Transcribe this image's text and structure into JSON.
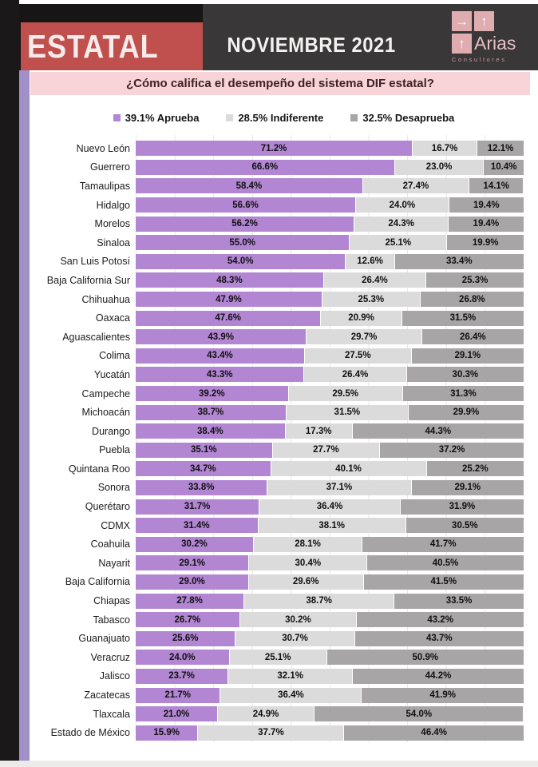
{
  "header": {
    "banner": "ESTATAL",
    "period": "NOVIEMBRE 2021",
    "banner_color": "#c0504d",
    "logo": {
      "name": "Arias",
      "subtitle": "Consultores",
      "arrows": [
        {
          "name": "arrow-right-icon",
          "glyph": "→"
        },
        {
          "name": "arrow-up-icon",
          "glyph": "↑"
        },
        {
          "name": "arrow-up-icon",
          "glyph": "↑"
        }
      ]
    }
  },
  "title": "¿Cómo califica el desempeño del sistema DIF estatal?",
  "title_band_color": "#f8d3d7",
  "accent_stripe_color": "#a291c8",
  "legend": [
    {
      "label": "39.1% Aprueba",
      "color": "#b286d3",
      "icon": "aprueba-swatch-icon"
    },
    {
      "label": "28.5% Indiferente",
      "color": "#dcdbdc",
      "icon": "indiferente-swatch-icon"
    },
    {
      "label": "32.5% Desaprueba",
      "color": "#a7a5a6",
      "icon": "desaprueba-swatch-icon"
    }
  ],
  "chart_data": {
    "type": "bar",
    "orientation": "horizontal",
    "stacked": true,
    "title": "¿Cómo califica el desempeño del sistema DIF estatal?",
    "xlabel": "",
    "ylabel": "",
    "xlim": [
      0,
      100
    ],
    "grid": true,
    "legend_position": "top",
    "categories": [
      "Nuevo León",
      "Guerrero",
      "Tamaulipas",
      "Hidalgo",
      "Morelos",
      "Sinaloa",
      "San Luis Potosí",
      "Baja California Sur",
      "Chihuahua",
      "Oaxaca",
      "Aguascalientes",
      "Colima",
      "Yucatán",
      "Campeche",
      "Michoacán",
      "Durango",
      "Puebla",
      "Quintana Roo",
      "Sonora",
      "Querétaro",
      "CDMX",
      "Coahuila",
      "Nayarit",
      "Baja California",
      "Chiapas",
      "Tabasco",
      "Guanajuato",
      "Veracruz",
      "Jalisco",
      "Zacatecas",
      "Tlaxcala",
      "Estado de México"
    ],
    "series": [
      {
        "name": "Aprueba",
        "color": "#b286d3",
        "values": [
          71.2,
          66.6,
          58.4,
          56.6,
          56.2,
          55.0,
          54.0,
          48.3,
          47.9,
          47.6,
          43.9,
          43.4,
          43.3,
          39.2,
          38.7,
          38.4,
          35.1,
          34.7,
          33.8,
          31.7,
          31.4,
          30.2,
          29.1,
          29.0,
          27.8,
          26.7,
          25.6,
          24.0,
          23.7,
          21.7,
          21.0,
          15.9
        ],
        "labels": [
          "71.2%",
          "66.6%",
          "58.4%",
          "56.6%",
          "56.2%",
          "55.0%",
          "54.0%",
          "48.3%",
          "47.9%",
          "47.6%",
          "43.9%",
          "43.4%",
          "43.3%",
          "39.2%",
          "38.7%",
          "38.4%",
          "35.1%",
          "34.7%",
          "33.8%",
          "31.7%",
          "31.4%",
          "30.2%",
          "29.1%",
          "29.0%",
          "27.8%",
          "26.7%",
          "25.6%",
          "24.0%",
          "23.7%",
          "21.7%",
          "21.0%",
          "15.9%"
        ]
      },
      {
        "name": "Indiferente",
        "color": "#dcdbdc",
        "values": [
          16.7,
          23.0,
          27.4,
          24.0,
          24.3,
          25.1,
          12.6,
          26.4,
          25.3,
          20.9,
          29.7,
          27.5,
          26.4,
          29.5,
          31.5,
          17.3,
          27.7,
          40.1,
          37.1,
          36.4,
          38.1,
          28.1,
          30.4,
          29.6,
          38.7,
          30.2,
          30.7,
          25.1,
          32.1,
          36.4,
          24.9,
          37.7
        ],
        "labels": [
          "16.7%",
          "23.0%",
          "27.4%",
          "24.0%",
          "24.3%",
          "25.1%",
          "12.6%",
          "26.4%",
          "25.3%",
          "20.9%",
          "29.7%",
          "27.5%",
          "26.4%",
          "29.5%",
          "31.5%",
          "17.3%",
          "27.7%",
          "40.1%",
          "37.1%",
          "36.4%",
          "38.1%",
          "28.1%",
          "30.4%",
          "29.6%",
          "38.7%",
          "30.2%",
          "30.7%",
          "25.1%",
          "32.1%",
          "36.4%",
          "24.9%",
          "37.7%"
        ]
      },
      {
        "name": "Desaprueba",
        "color": "#a7a5a6",
        "values": [
          12.1,
          10.4,
          14.1,
          19.4,
          19.4,
          19.9,
          33.4,
          25.3,
          26.8,
          31.5,
          26.4,
          29.1,
          30.3,
          31.3,
          29.9,
          44.3,
          37.2,
          25.2,
          29.1,
          31.9,
          30.5,
          41.7,
          40.5,
          41.5,
          33.5,
          43.2,
          43.7,
          50.9,
          44.2,
          41.9,
          54.0,
          46.4
        ],
        "labels": [
          "12.1%",
          "10.4%",
          "14.1%",
          "19.4%",
          "19.4%",
          "19.9%",
          "33.4%",
          "25.3%",
          "26.8%",
          "31.5%",
          "26.4%",
          "29.1%",
          "30.3%",
          "31.3%",
          "29.9%",
          "44.3%",
          "37.2%",
          "25.2%",
          "29.1%",
          "31.9%",
          "30.5%",
          "41.7%",
          "40.5%",
          "41.5%",
          "33.5%",
          "43.2%",
          "43.7%",
          "50.9%",
          "44.2%",
          "41.9%",
          "54.0%",
          "46.4%"
        ]
      }
    ]
  }
}
